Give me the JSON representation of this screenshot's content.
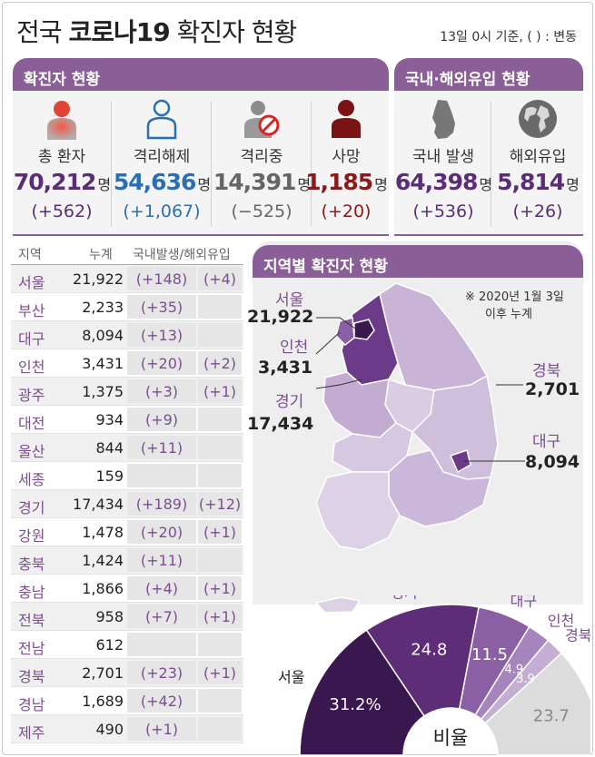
{
  "header": {
    "title_prefix": "전국",
    "title_bold": "코로나19",
    "title_suffix": "확진자 현황",
    "subtitle": "13일 0시 기준, ( ) : 변동"
  },
  "sections": {
    "confirmed": "확진자 현황",
    "domestic_overseas": "국내·해외유입 현황",
    "regional": "지역별 확진자 현황"
  },
  "stats": [
    {
      "label": "총 환자",
      "value": "70,212",
      "unit": "명",
      "change": "(+562)",
      "color": "#5a2e77",
      "icon": "person-red-icon"
    },
    {
      "label": "격리해제",
      "value": "54,636",
      "unit": "명",
      "change": "(+1,067)",
      "color": "#2b6fb3",
      "icon": "person-outline-icon"
    },
    {
      "label": "격리중",
      "value": "14,391",
      "unit": "명",
      "change": "(−525)",
      "color": "#666666",
      "icon": "person-blocked-icon"
    },
    {
      "label": "사망",
      "value": "1,185",
      "unit": "명",
      "change": "(+20)",
      "color": "#8b1a1a",
      "icon": "person-darkred-icon"
    },
    {
      "label": "국내 발생",
      "value": "64,398",
      "unit": "명",
      "change": "(+536)",
      "color": "#5a2e77",
      "icon": "korea-map-icon"
    },
    {
      "label": "해외유입",
      "value": "5,814",
      "unit": "명",
      "change": "(+26)",
      "color": "#5a2e77",
      "icon": "globe-icon"
    }
  ],
  "table": {
    "headers": [
      "지역",
      "누계",
      "국내발생/해외유입"
    ],
    "rows": [
      {
        "region": "서울",
        "total": "21,922",
        "domestic": "(+148)",
        "overseas": "(+4)"
      },
      {
        "region": "부산",
        "total": "2,233",
        "domestic": "(+35)",
        "overseas": ""
      },
      {
        "region": "대구",
        "total": "8,094",
        "domestic": "(+13)",
        "overseas": ""
      },
      {
        "region": "인천",
        "total": "3,431",
        "domestic": "(+20)",
        "overseas": "(+2)"
      },
      {
        "region": "광주",
        "total": "1,375",
        "domestic": "(+3)",
        "overseas": "(+1)"
      },
      {
        "region": "대전",
        "total": "934",
        "domestic": "(+9)",
        "overseas": ""
      },
      {
        "region": "울산",
        "total": "844",
        "domestic": "(+11)",
        "overseas": ""
      },
      {
        "region": "세종",
        "total": "159",
        "domestic": "",
        "overseas": ""
      },
      {
        "region": "경기",
        "total": "17,434",
        "domestic": "(+189)",
        "overseas": "(+12)"
      },
      {
        "region": "강원",
        "total": "1,478",
        "domestic": "(+20)",
        "overseas": "(+1)"
      },
      {
        "region": "충북",
        "total": "1,424",
        "domestic": "(+11)",
        "overseas": ""
      },
      {
        "region": "충남",
        "total": "1,866",
        "domestic": "(+4)",
        "overseas": "(+1)"
      },
      {
        "region": "전북",
        "total": "958",
        "domestic": "(+7)",
        "overseas": "(+1)"
      },
      {
        "region": "전남",
        "total": "612",
        "domestic": "",
        "overseas": ""
      },
      {
        "region": "경북",
        "total": "2,701",
        "domestic": "(+23)",
        "overseas": "(+1)"
      },
      {
        "region": "경남",
        "total": "1,689",
        "domestic": "(+42)",
        "overseas": ""
      },
      {
        "region": "제주",
        "total": "490",
        "domestic": "(+1)",
        "overseas": ""
      }
    ]
  },
  "map": {
    "note_line1": "※ 2020년 1월 3일",
    "note_line2": "이후 누계",
    "labels": [
      {
        "name": "서울",
        "value": "21,922"
      },
      {
        "name": "인천",
        "value": "3,431"
      },
      {
        "name": "경기",
        "value": "17,434"
      },
      {
        "name": "경북",
        "value": "2,701"
      },
      {
        "name": "대구",
        "value": "8,094"
      }
    ]
  },
  "chart_data": {
    "type": "pie",
    "title": "비율",
    "labels": [
      "서울",
      "경기",
      "대구",
      "인천",
      "경북",
      ""
    ],
    "values": [
      31.2,
      24.8,
      11.5,
      4.9,
      3.9,
      23.7
    ],
    "value_labels": [
      "31.2%",
      "24.8",
      "11.5",
      "4.9",
      "3.9",
      "23.7"
    ],
    "colors": [
      "#3b1750",
      "#5e2d78",
      "#8a5fa3",
      "#a585bc",
      "#c4aed4",
      "#dcdcdc"
    ],
    "shape": "semicircle-donut"
  }
}
